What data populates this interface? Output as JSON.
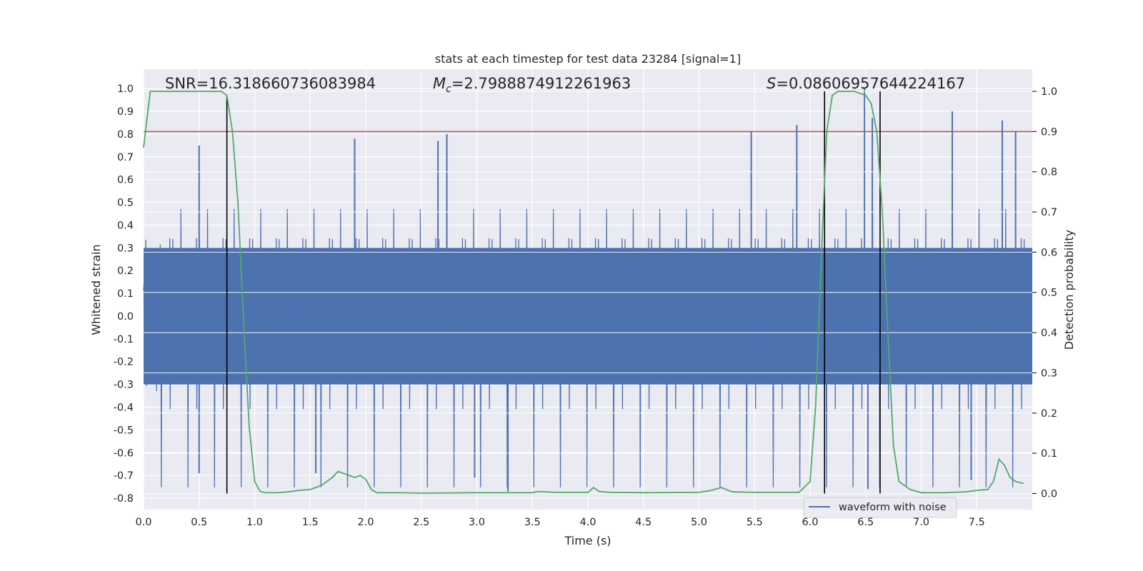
{
  "chart_data": {
    "type": "line",
    "title": "stats at each timestep for test data 23284 [signal=1]",
    "xlabel": "Time (s)",
    "ylabel": "Whitened strain",
    "y2label": "Detection probability",
    "xlim": [
      0.0,
      8.0
    ],
    "ylim": [
      -0.85,
      1.085
    ],
    "y2lim": [
      -0.04,
      1.055
    ],
    "x_ticks": [
      "0.0",
      "0.5",
      "1.0",
      "1.5",
      "2.0",
      "2.5",
      "3.0",
      "3.5",
      "4.0",
      "4.5",
      "5.0",
      "5.5",
      "6.0",
      "6.5",
      "7.0",
      "7.5"
    ],
    "y_ticks": [
      "-0.8",
      "-0.7",
      "-0.6",
      "-0.5",
      "-0.4",
      "-0.3",
      "-0.2",
      "-0.1",
      "0.0",
      "0.1",
      "0.2",
      "0.3",
      "0.4",
      "0.5",
      "0.6",
      "0.7",
      "0.8",
      "0.9",
      "1.0"
    ],
    "y2_ticks": [
      "0.0",
      "0.1",
      "0.2",
      "0.3",
      "0.4",
      "0.5",
      "0.6",
      "0.7",
      "0.8",
      "0.9",
      "1.0"
    ],
    "grid": true,
    "legend_position": "lower-right",
    "annotations": {
      "snr": "SNR=16.318660736083984",
      "mc_symbol": "M",
      "mc_sub": "c",
      "mc_value": "=2.7988874912261963",
      "s_symbol": "S",
      "s_value": "=0.08606957644224167"
    },
    "series": [
      {
        "name": "waveform with noise",
        "axis": "left",
        "color": "#4c72b0",
        "envelope": {
          "core_amplitude": 0.3,
          "typical_peak": 0.45,
          "max_peak": 1.0,
          "min_trough": -0.78
        },
        "notable_peaks": [
          {
            "x": 0.5,
            "y": 0.75
          },
          {
            "x": 1.9,
            "y": 0.78
          },
          {
            "x": 2.65,
            "y": 0.77
          },
          {
            "x": 2.73,
            "y": 0.8
          },
          {
            "x": 5.47,
            "y": 0.81
          },
          {
            "x": 5.88,
            "y": 0.84
          },
          {
            "x": 6.49,
            "y": 1.0
          },
          {
            "x": 6.56,
            "y": 0.87
          },
          {
            "x": 7.28,
            "y": 0.9
          },
          {
            "x": 7.73,
            "y": 0.86
          },
          {
            "x": 7.85,
            "y": 0.81
          }
        ],
        "notable_troughs": [
          {
            "x": 0.5,
            "y": -0.69
          },
          {
            "x": 3.28,
            "y": -0.77
          },
          {
            "x": 6.52,
            "y": -0.76
          },
          {
            "x": 7.45,
            "y": -0.72
          },
          {
            "x": 1.55,
            "y": -0.69
          },
          {
            "x": 2.98,
            "y": -0.71
          }
        ]
      },
      {
        "name": "",
        "axis": "right",
        "color": "#55a868",
        "x": [
          0.0,
          0.06,
          0.1,
          0.2,
          0.3,
          0.4,
          0.5,
          0.6,
          0.7,
          0.75,
          0.8,
          0.85,
          0.9,
          0.95,
          1.0,
          1.05,
          1.1,
          1.2,
          1.3,
          1.4,
          1.5,
          1.55,
          1.6,
          1.7,
          1.75,
          1.8,
          1.85,
          1.9,
          1.95,
          2.0,
          2.05,
          2.1,
          2.2,
          2.3,
          2.5,
          3.0,
          3.5,
          3.55,
          3.7,
          4.0,
          4.05,
          4.1,
          4.2,
          4.5,
          5.0,
          5.1,
          5.2,
          5.3,
          5.5,
          5.9,
          6.0,
          6.05,
          6.1,
          6.15,
          6.2,
          6.25,
          6.3,
          6.4,
          6.5,
          6.55,
          6.6,
          6.65,
          6.7,
          6.75,
          6.8,
          6.9,
          7.0,
          7.1,
          7.2,
          7.4,
          7.5,
          7.6,
          7.65,
          7.7,
          7.75,
          7.8,
          7.85,
          7.92
        ],
        "y": [
          0.86,
          1.0,
          1.0,
          1.0,
          1.0,
          1.0,
          1.0,
          1.0,
          1.0,
          0.99,
          0.9,
          0.72,
          0.43,
          0.17,
          0.03,
          0.005,
          0.002,
          0.002,
          0.004,
          0.008,
          0.01,
          0.015,
          0.02,
          0.04,
          0.055,
          0.05,
          0.045,
          0.04,
          0.045,
          0.035,
          0.01,
          0.002,
          0.002,
          0.002,
          0.001,
          0.002,
          0.002,
          0.005,
          0.003,
          0.003,
          0.015,
          0.005,
          0.003,
          0.002,
          0.003,
          0.007,
          0.015,
          0.004,
          0.003,
          0.003,
          0.03,
          0.22,
          0.58,
          0.9,
          0.99,
          1.0,
          1.0,
          1.0,
          0.99,
          0.97,
          0.9,
          0.7,
          0.4,
          0.12,
          0.03,
          0.01,
          0.002,
          0.002,
          0.002,
          0.004,
          0.008,
          0.01,
          0.03,
          0.085,
          0.07,
          0.04,
          0.03,
          0.025
        ]
      }
    ],
    "threshold": {
      "axis": "right",
      "y": 0.9,
      "color": "#c44e52"
    },
    "vertical_markers": [
      {
        "x": 0.75,
        "y2_top": 0.99
      },
      {
        "x": 6.13,
        "y2_top": 1.0
      },
      {
        "x": 6.63,
        "y2_top": 1.0
      }
    ]
  }
}
